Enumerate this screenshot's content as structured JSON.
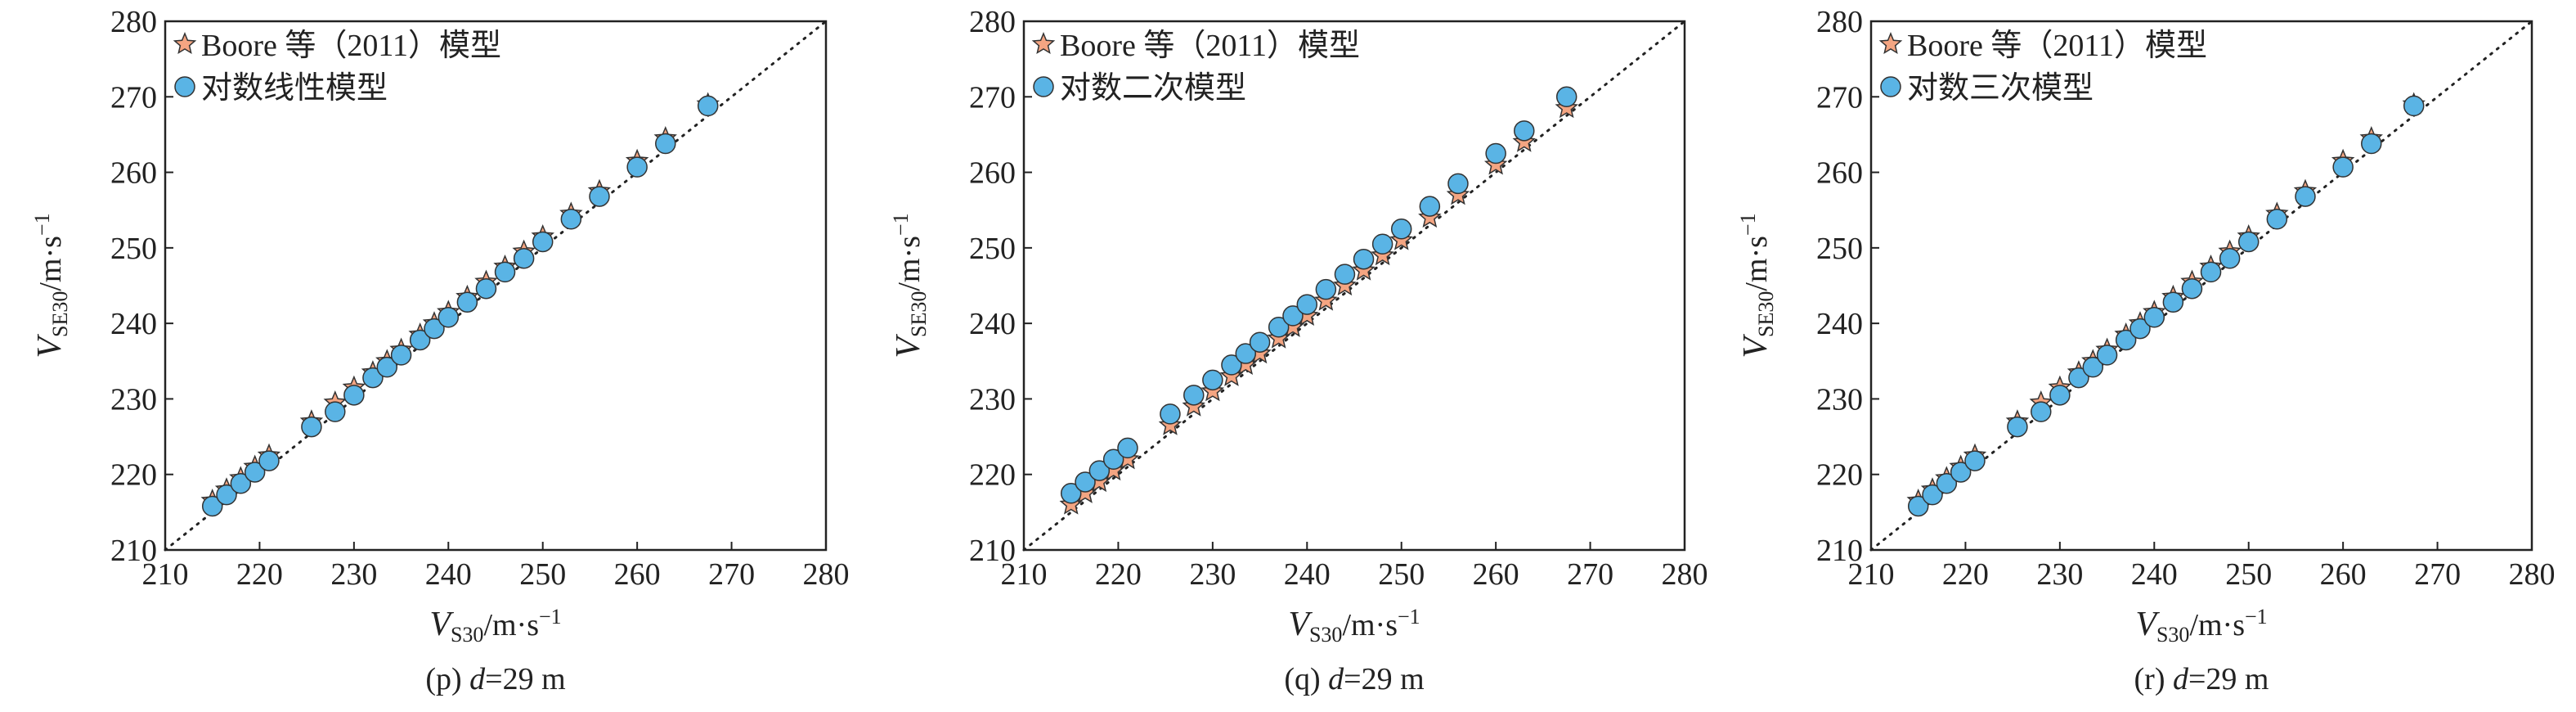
{
  "chart_data": [
    {
      "type": "scatter",
      "caption": [
        "(p) ",
        "d",
        "=29 m"
      ],
      "x_label": {
        "main": "V",
        "sub": "S30",
        "unit": "/m·s",
        "sup": "−1"
      },
      "y_label": {
        "main": "V",
        "sub": "SE30",
        "unit": "/m·s",
        "sup": "−1"
      },
      "xlim": [
        210,
        280
      ],
      "ylim": [
        210,
        280
      ],
      "xticks": [
        210,
        220,
        230,
        240,
        250,
        260,
        270,
        280
      ],
      "yticks": [
        210,
        220,
        230,
        240,
        250,
        260,
        270,
        280
      ],
      "x": [
        215,
        216.5,
        218,
        219.5,
        221,
        225.5,
        228,
        230,
        232,
        233.5,
        235,
        237,
        238.5,
        240,
        242,
        244,
        246,
        248,
        250,
        253,
        256,
        260,
        263,
        267.5
      ],
      "series": [
        {
          "name": "Boore 等（2011）模型",
          "marker": "star",
          "color": "#f4a582",
          "values": [
            216.5,
            218,
            219.5,
            221,
            222.5,
            227,
            229.5,
            231.5,
            233.5,
            235,
            236.5,
            238.5,
            240,
            241.5,
            243.5,
            245.5,
            247.5,
            249.5,
            251.5,
            254.5,
            257.5,
            261.5,
            264.5,
            269
          ]
        },
        {
          "name": "对数线性模型",
          "marker": "circle",
          "color": "#5ab4e5",
          "values": [
            215.8,
            217.3,
            218.8,
            220.3,
            221.8,
            226.3,
            228.3,
            230.5,
            232.8,
            234.2,
            235.8,
            237.8,
            239.3,
            240.8,
            242.8,
            244.6,
            246.8,
            248.6,
            250.8,
            253.8,
            256.8,
            260.7,
            263.8,
            268.8
          ]
        }
      ]
    },
    {
      "type": "scatter",
      "caption": [
        "(q) ",
        "d",
        "=29 m"
      ],
      "x_label": {
        "main": "V",
        "sub": "S30",
        "unit": "/m·s",
        "sup": "−1"
      },
      "y_label": {
        "main": "V",
        "sub": "SE30",
        "unit": "/m·s",
        "sup": "−1"
      },
      "xlim": [
        210,
        280
      ],
      "ylim": [
        210,
        280
      ],
      "xticks": [
        210,
        220,
        230,
        240,
        250,
        260,
        270,
        280
      ],
      "yticks": [
        210,
        220,
        230,
        240,
        250,
        260,
        270,
        280
      ],
      "x": [
        215,
        216.5,
        218,
        219.5,
        221,
        225.5,
        228,
        230,
        232,
        233.5,
        235,
        237,
        238.5,
        240,
        242,
        244,
        246,
        248,
        250,
        253,
        256,
        260,
        263,
        267.5
      ],
      "series": [
        {
          "name": "Boore 等（2011）模型",
          "marker": "star",
          "color": "#f4a582",
          "values": [
            216,
            217.5,
            219,
            220.5,
            222,
            226.5,
            229,
            231,
            233,
            234.5,
            236,
            238,
            239.5,
            241,
            243,
            245,
            247,
            249,
            251,
            254,
            257,
            261,
            264,
            268.5
          ]
        },
        {
          "name": "对数二次模型",
          "marker": "circle",
          "color": "#5ab4e5",
          "values": [
            217.5,
            219,
            220.5,
            222,
            223.5,
            228,
            230.5,
            232.5,
            234.5,
            236,
            237.5,
            239.5,
            241,
            242.5,
            244.5,
            246.5,
            248.5,
            250.5,
            252.5,
            255.5,
            258.5,
            262.5,
            265.5,
            270
          ]
        }
      ]
    },
    {
      "type": "scatter",
      "caption": [
        "(r) ",
        "d",
        "=29 m"
      ],
      "x_label": {
        "main": "V",
        "sub": "S30",
        "unit": "/m·s",
        "sup": "−1"
      },
      "y_label": {
        "main": "V",
        "sub": "SE30",
        "unit": "/m·s",
        "sup": "−1"
      },
      "xlim": [
        210,
        280
      ],
      "ylim": [
        210,
        280
      ],
      "xticks": [
        210,
        220,
        230,
        240,
        250,
        260,
        270,
        280
      ],
      "yticks": [
        210,
        220,
        230,
        240,
        250,
        260,
        270,
        280
      ],
      "x": [
        215,
        216.5,
        218,
        219.5,
        221,
        225.5,
        228,
        230,
        232,
        233.5,
        235,
        237,
        238.5,
        240,
        242,
        244,
        246,
        248,
        250,
        253,
        256,
        260,
        263,
        267.5
      ],
      "series": [
        {
          "name": "Boore 等（2011）模型",
          "marker": "star",
          "color": "#f4a582",
          "values": [
            216.5,
            218,
            219.5,
            221,
            222.5,
            227,
            229.5,
            231.5,
            233.5,
            235,
            236.5,
            238.5,
            240,
            241.5,
            243.5,
            245.5,
            247.5,
            249.5,
            251.5,
            254.5,
            257.5,
            261.5,
            264.5,
            269
          ]
        },
        {
          "name": "对数三次模型",
          "marker": "circle",
          "color": "#5ab4e5",
          "values": [
            215.8,
            217.3,
            218.8,
            220.3,
            221.8,
            226.3,
            228.3,
            230.5,
            232.8,
            234.2,
            235.8,
            237.8,
            239.3,
            240.8,
            242.8,
            244.6,
            246.8,
            248.6,
            250.8,
            253.8,
            256.8,
            260.7,
            263.8,
            268.8
          ]
        }
      ]
    }
  ]
}
